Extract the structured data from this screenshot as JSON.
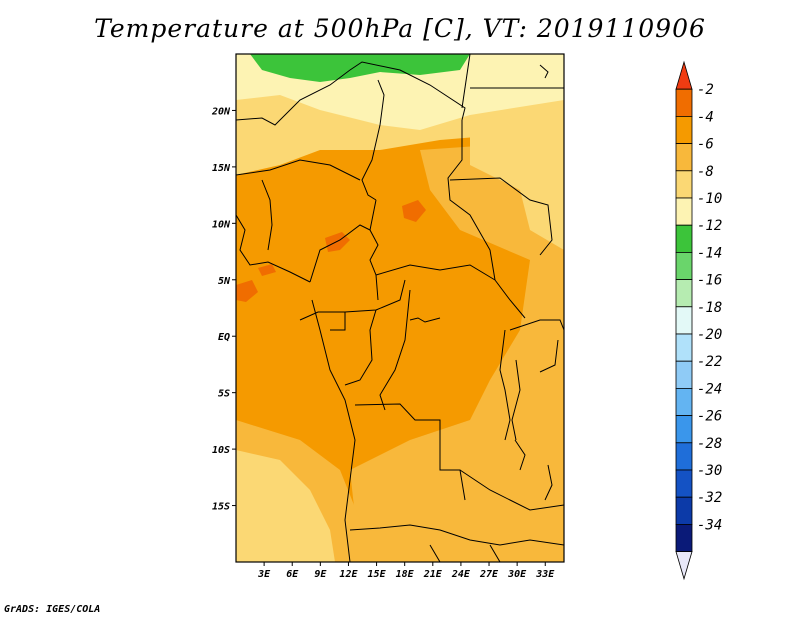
{
  "title": "Temperature at 500hPa [C], VT: 2019110906",
  "credit": "GrADS: IGES/COLA",
  "chart_data": {
    "type": "heatmap",
    "variable": "Temperature at 500hPa",
    "units": "C",
    "valid_time": "2019110906",
    "lon_range": [
      0,
      35
    ],
    "lat_range": [
      -20,
      25
    ],
    "lat_ticks": [
      {
        "value": 20,
        "label": "20N"
      },
      {
        "value": 15,
        "label": "15N"
      },
      {
        "value": 10,
        "label": "10N"
      },
      {
        "value": 5,
        "label": "5N"
      },
      {
        "value": 0,
        "label": "EQ"
      },
      {
        "value": -5,
        "label": "5S"
      },
      {
        "value": -10,
        "label": "10S"
      },
      {
        "value": -15,
        "label": "15S"
      }
    ],
    "lon_ticks": [
      {
        "value": 3,
        "label": "3E"
      },
      {
        "value": 6,
        "label": "6E"
      },
      {
        "value": 9,
        "label": "9E"
      },
      {
        "value": 12,
        "label": "12E"
      },
      {
        "value": 15,
        "label": "15E"
      },
      {
        "value": 18,
        "label": "18E"
      },
      {
        "value": 21,
        "label": "21E"
      },
      {
        "value": 24,
        "label": "24E"
      },
      {
        "value": 27,
        "label": "27E"
      },
      {
        "value": 30,
        "label": "30E"
      },
      {
        "value": 33,
        "label": "33E"
      }
    ],
    "colorbar": {
      "levels": [
        "-2",
        "-4",
        "-6",
        "-8",
        "-10",
        "-12",
        "-14",
        "-16",
        "-18",
        "-20",
        "-22",
        "-24",
        "-26",
        "-28",
        "-30",
        "-32",
        "-34"
      ],
      "colors": [
        "#f03c12",
        "#f06d00",
        "#f59a00",
        "#f8b83b",
        "#fbd874",
        "#fdf3b3",
        "#3cc43a",
        "#6ad56b",
        "#b6ecb1",
        "#e3f9f7",
        "#b0e1fa",
        "#8fcbf6",
        "#63b4f2",
        "#3a96eb",
        "#1f6ed9",
        "#1452c4",
        "#0c3aa8",
        "#0a1a78",
        "#e8e8f8"
      ]
    },
    "regions": [
      {
        "label": "-14 to -12",
        "color": "#3cc43a",
        "where": "far north strip near 24N"
      },
      {
        "label": "-12 to -10",
        "color": "#fdf3b3",
        "where": "northern band 18N-23N"
      },
      {
        "label": "-10 to -8",
        "color": "#fbd874",
        "where": "north and east margins, south-west"
      },
      {
        "label": "-8 to -6",
        "color": "#f8b83b",
        "where": "east Africa and southern Africa"
      },
      {
        "label": "-6 to -4",
        "color": "#f59a00",
        "where": "central Africa and Gulf of Guinea"
      },
      {
        "label": "-4 to -2",
        "color": "#f06d00",
        "where": "small patches near 5N-12N"
      }
    ]
  }
}
